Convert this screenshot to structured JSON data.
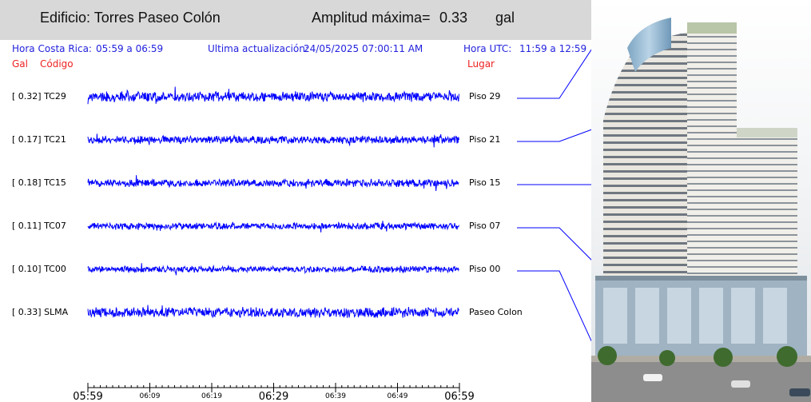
{
  "header": {
    "building_label": "Edificio: Torres Paseo Colón",
    "amplitude_label": "Amplitud máxima=",
    "amplitude_value": "0.33",
    "amplitude_unit": "gal"
  },
  "info": {
    "local_time_label": "Hora Costa Rica:",
    "local_time_range": "05:59 a 06:59",
    "update_label": "Ultima actualización:",
    "update_value": "24/05/2025 07:00:11 AM",
    "utc_label": "Hora UTC:",
    "utc_range": "11:59 a 12:59"
  },
  "columns": {
    "gal": "Gal",
    "code": "Código",
    "place": "Lugar"
  },
  "colors": {
    "trace": "#0000ff",
    "header_bg": "#d8d8d8",
    "info_text": "#2222dd",
    "column_text": "#ee2222"
  },
  "chart_data": {
    "type": "line",
    "title": "",
    "xlabel": "",
    "ylabel": "",
    "x_ticks": [
      "05:59",
      "06:09",
      "06:19",
      "06:29",
      "06:39",
      "06:49",
      "06:59"
    ],
    "xlim": [
      "05:59",
      "06:59"
    ],
    "series": [
      {
        "name": "TC29",
        "max_gal": "0.32",
        "place": "Piso 29",
        "amplitude": 0.32
      },
      {
        "name": "TC21",
        "max_gal": "0.17",
        "place": "Piso 21",
        "amplitude": 0.17
      },
      {
        "name": "TC15",
        "max_gal": "0.18",
        "place": "Piso 15",
        "amplitude": 0.18
      },
      {
        "name": "TC07",
        "max_gal": "0.11",
        "place": "Piso 07",
        "amplitude": 0.11
      },
      {
        "name": "TC00",
        "max_gal": "0.10",
        "place": "Piso 00",
        "amplitude": 0.1
      },
      {
        "name": "SLMA",
        "max_gal": "0.33",
        "place": "Paseo Colon",
        "amplitude": 0.33
      }
    ]
  }
}
